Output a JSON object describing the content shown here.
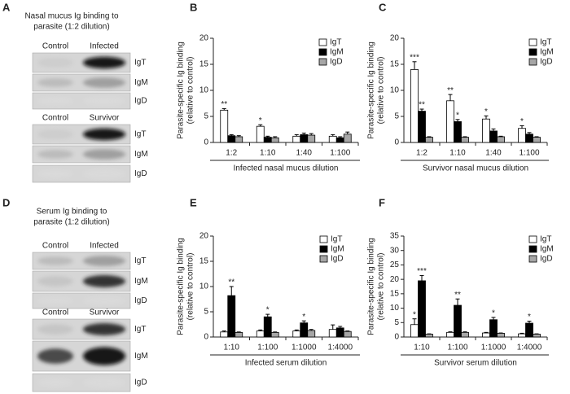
{
  "blots": [
    {
      "panel": "A",
      "title": [
        "Nasal mucus Ig binding to",
        "parasite (1:2 dilution)"
      ],
      "groups": [
        {
          "headers": [
            "Control",
            "Infected"
          ],
          "rows": [
            "IgT",
            "IgM",
            "IgD"
          ]
        },
        {
          "headers": [
            "Control",
            "Survivor"
          ],
          "rows": [
            "IgT",
            "IgM",
            "IgD"
          ]
        }
      ]
    },
    {
      "panel": "D",
      "title": [
        "Serum Ig binding to",
        "parasite (1:2 dilution)"
      ],
      "groups": [
        {
          "headers": [
            "Control",
            "Infected"
          ],
          "rows": [
            "IgT",
            "IgM",
            "IgD"
          ]
        },
        {
          "headers": [
            "Control",
            "Survivor"
          ],
          "rows": [
            "IgT",
            "IgM",
            "IgD"
          ]
        }
      ]
    }
  ],
  "chart_data": [
    {
      "type": "bar",
      "panel": "B",
      "ylabel": [
        "Parasite-specific Ig binding",
        "(relative to control)"
      ],
      "xlabel": "Infected nasal mucus dilution",
      "categories": [
        "1:2",
        "1:10",
        "1:40",
        "1:100"
      ],
      "ylim": [
        0,
        20
      ],
      "yticks": [
        0,
        5,
        10,
        15,
        20
      ],
      "series": [
        {
          "name": "IgT",
          "color": "#ffffff",
          "values": [
            6.2,
            3.1,
            1.2,
            1.2
          ],
          "errors": [
            0.3,
            0.3,
            0.3,
            0.3
          ],
          "significance": [
            "**",
            "*",
            null,
            null
          ]
        },
        {
          "name": "IgM",
          "color": "#000000",
          "values": [
            1.3,
            1.0,
            1.5,
            0.9
          ],
          "errors": [
            0.2,
            0.2,
            0.3,
            0.2
          ],
          "significance": [
            null,
            null,
            null,
            null
          ]
        },
        {
          "name": "IgD",
          "color": "#a6a6a6",
          "values": [
            1.1,
            0.9,
            1.4,
            1.6
          ],
          "errors": [
            0.2,
            0.2,
            0.3,
            0.4
          ],
          "significance": [
            null,
            null,
            null,
            null
          ]
        }
      ]
    },
    {
      "type": "bar",
      "panel": "C",
      "ylabel": [
        "Parasite-specific Ig binding",
        "(relative to control)"
      ],
      "xlabel": "Survivor nasal mucus dilution",
      "categories": [
        "1:2",
        "1:10",
        "1:40",
        "1:100"
      ],
      "ylim": [
        0,
        20
      ],
      "yticks": [
        0,
        5,
        10,
        15,
        20
      ],
      "series": [
        {
          "name": "IgT",
          "color": "#ffffff",
          "values": [
            14,
            8,
            4.5,
            2.7
          ],
          "errors": [
            1.5,
            1.2,
            0.6,
            0.5
          ],
          "significance": [
            "***",
            "**",
            "*",
            "*"
          ]
        },
        {
          "name": "IgM",
          "color": "#000000",
          "values": [
            6,
            4,
            2.2,
            1.6
          ],
          "errors": [
            0.4,
            0.4,
            0.4,
            0.3
          ],
          "significance": [
            "**",
            "*",
            null,
            null
          ]
        },
        {
          "name": "IgD",
          "color": "#a6a6a6",
          "values": [
            1.0,
            1.0,
            1.1,
            1.0
          ],
          "errors": [
            0.1,
            0.1,
            0.1,
            0.1
          ],
          "significance": [
            null,
            null,
            null,
            null
          ]
        }
      ]
    },
    {
      "type": "bar",
      "panel": "E",
      "ylabel": [
        "Parasite-specific Ig binding",
        "(relative to control)"
      ],
      "xlabel": "Infected serum dilution",
      "categories": [
        "1:10",
        "1:100",
        "1:1000",
        "1:4000"
      ],
      "ylim": [
        0,
        20
      ],
      "yticks": [
        0,
        5,
        10,
        15,
        20
      ],
      "series": [
        {
          "name": "IgT",
          "color": "#ffffff",
          "values": [
            1.0,
            1.2,
            1.2,
            1.5
          ],
          "errors": [
            0.2,
            0.2,
            0.2,
            0.9
          ],
          "significance": [
            null,
            null,
            null,
            null
          ]
        },
        {
          "name": "IgM",
          "color": "#000000",
          "values": [
            8.2,
            4.0,
            2.8,
            1.8
          ],
          "errors": [
            1.8,
            0.5,
            0.4,
            0.3
          ],
          "significance": [
            "**",
            "*",
            "*",
            null
          ]
        },
        {
          "name": "IgD",
          "color": "#a6a6a6",
          "values": [
            0.9,
            0.9,
            1.3,
            1.1
          ],
          "errors": [
            0.1,
            0.1,
            0.2,
            0.1
          ],
          "significance": [
            null,
            null,
            null,
            null
          ]
        }
      ]
    },
    {
      "type": "bar",
      "panel": "F",
      "ylabel": [
        "Parasite-specific Ig binding",
        "(relative to control)"
      ],
      "xlabel": "Survivor serum dilution",
      "categories": [
        "1:10",
        "1:100",
        "1:1000",
        "1:4000"
      ],
      "ylim": [
        0,
        35
      ],
      "yticks": [
        0,
        5,
        10,
        15,
        20,
        25,
        30,
        35
      ],
      "series": [
        {
          "name": "IgT",
          "color": "#ffffff",
          "values": [
            4.3,
            1.6,
            1.4,
            1.1
          ],
          "errors": [
            2.0,
            0.2,
            0.2,
            0.2
          ],
          "significance": [
            "*",
            null,
            null,
            null
          ]
        },
        {
          "name": "IgM",
          "color": "#000000",
          "values": [
            19.5,
            11,
            6,
            4.8
          ],
          "errors": [
            1.8,
            2.2,
            0.8,
            0.7
          ],
          "significance": [
            "***",
            "**",
            "*",
            "*"
          ]
        },
        {
          "name": "IgD",
          "color": "#a6a6a6",
          "values": [
            1.0,
            1.6,
            1.3,
            1.0
          ],
          "errors": [
            0.1,
            0.2,
            0.1,
            0.1
          ],
          "significance": [
            null,
            null,
            null,
            null
          ]
        }
      ]
    }
  ]
}
